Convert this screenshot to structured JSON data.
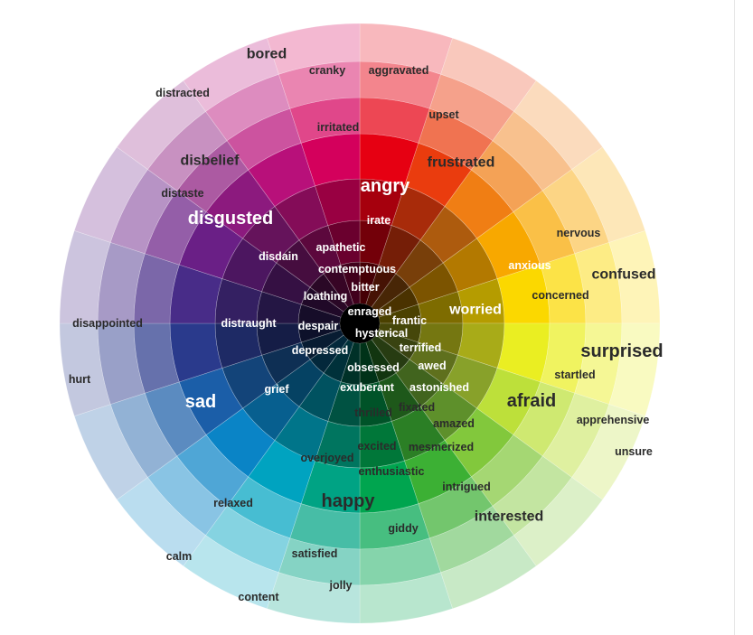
{
  "wheel": {
    "sector_colors": [
      {
        "name": "red",
        "color": "#e60012"
      },
      {
        "name": "red-orange",
        "color": "#ea3c0e"
      },
      {
        "name": "orange",
        "color": "#f07e14"
      },
      {
        "name": "orange-yellow",
        "color": "#f8a800"
      },
      {
        "name": "yellow",
        "color": "#fbd800"
      },
      {
        "name": "yellow-green",
        "color": "#eaee22"
      },
      {
        "name": "yellow-green-2",
        "color": "#bde03a"
      },
      {
        "name": "green-yellow",
        "color": "#82c83c"
      },
      {
        "name": "green",
        "color": "#3cb034"
      },
      {
        "name": "green-2",
        "color": "#00a54f"
      },
      {
        "name": "teal-green",
        "color": "#00a384"
      },
      {
        "name": "cyan",
        "color": "#00a3c0"
      },
      {
        "name": "blue-cyan",
        "color": "#0a84c6"
      },
      {
        "name": "blue",
        "color": "#1b5ea8"
      },
      {
        "name": "indigo",
        "color": "#2a3a8c"
      },
      {
        "name": "violet",
        "color": "#482c88"
      },
      {
        "name": "purple",
        "color": "#6a1f86"
      },
      {
        "name": "magenta-purple",
        "color": "#8c1a7e"
      },
      {
        "name": "magenta",
        "color": "#b8107a"
      },
      {
        "name": "crimson",
        "color": "#d4005c"
      }
    ],
    "center_color": "#000000"
  },
  "emotions": [
    {
      "text": "bored",
      "tone": "dark",
      "size": "md"
    },
    {
      "text": "cranky",
      "tone": "dark",
      "size": "sm"
    },
    {
      "text": "aggravated",
      "tone": "dark",
      "size": "sm"
    },
    {
      "text": "distracted",
      "tone": "dark",
      "size": "sm"
    },
    {
      "text": "upset",
      "tone": "dark",
      "size": "sm"
    },
    {
      "text": "irritated",
      "tone": "dark",
      "size": "sm"
    },
    {
      "text": "disbelief",
      "tone": "dark",
      "size": "md"
    },
    {
      "text": "frustrated",
      "tone": "dark",
      "size": "md"
    },
    {
      "text": "angry",
      "tone": "light",
      "size": "lg"
    },
    {
      "text": "distaste",
      "tone": "dark",
      "size": "sm"
    },
    {
      "text": "disgusted",
      "tone": "light",
      "size": "lg"
    },
    {
      "text": "irate",
      "tone": "light",
      "size": "sm"
    },
    {
      "text": "nervous",
      "tone": "dark",
      "size": "sm"
    },
    {
      "text": "apathetic",
      "tone": "light",
      "size": "sm"
    },
    {
      "text": "disdain",
      "tone": "light",
      "size": "sm"
    },
    {
      "text": "anxious",
      "tone": "light",
      "size": "sm"
    },
    {
      "text": "contemptuous",
      "tone": "light",
      "size": "sm"
    },
    {
      "text": "confused",
      "tone": "dark",
      "size": "md"
    },
    {
      "text": "bitter",
      "tone": "light",
      "size": "sm"
    },
    {
      "text": "loathing",
      "tone": "light",
      "size": "sm"
    },
    {
      "text": "concerned",
      "tone": "dark",
      "size": "sm"
    },
    {
      "text": "worried",
      "tone": "light",
      "size": "md"
    },
    {
      "text": "enraged",
      "tone": "light",
      "size": "sm"
    },
    {
      "text": "frantic",
      "tone": "light",
      "size": "sm"
    },
    {
      "text": "disappointed",
      "tone": "dark",
      "size": "sm"
    },
    {
      "text": "distraught",
      "tone": "light",
      "size": "sm"
    },
    {
      "text": "despair",
      "tone": "light",
      "size": "sm"
    },
    {
      "text": "hysterical",
      "tone": "light",
      "size": "sm"
    },
    {
      "text": "terrified",
      "tone": "light",
      "size": "sm"
    },
    {
      "text": "depressed",
      "tone": "light",
      "size": "sm"
    },
    {
      "text": "surprised",
      "tone": "dark",
      "size": "lg"
    },
    {
      "text": "obsessed",
      "tone": "light",
      "size": "sm"
    },
    {
      "text": "awed",
      "tone": "light",
      "size": "sm"
    },
    {
      "text": "startled",
      "tone": "dark",
      "size": "sm"
    },
    {
      "text": "hurt",
      "tone": "dark",
      "size": "sm"
    },
    {
      "text": "grief",
      "tone": "light",
      "size": "sm"
    },
    {
      "text": "exuberant",
      "tone": "light",
      "size": "sm"
    },
    {
      "text": "astonished",
      "tone": "light",
      "size": "sm"
    },
    {
      "text": "sad",
      "tone": "light",
      "size": "lg"
    },
    {
      "text": "afraid",
      "tone": "dark",
      "size": "lg"
    },
    {
      "text": "fixated",
      "tone": "dark",
      "size": "sm"
    },
    {
      "text": "thrilled",
      "tone": "dark",
      "size": "sm"
    },
    {
      "text": "apprehensive",
      "tone": "dark",
      "size": "sm"
    },
    {
      "text": "amazed",
      "tone": "dark",
      "size": "sm"
    },
    {
      "text": "excited",
      "tone": "dark",
      "size": "sm"
    },
    {
      "text": "mesmerized",
      "tone": "dark",
      "size": "sm"
    },
    {
      "text": "unsure",
      "tone": "dark",
      "size": "sm"
    },
    {
      "text": "overjoyed",
      "tone": "dark",
      "size": "sm"
    },
    {
      "text": "enthusiastic",
      "tone": "dark",
      "size": "sm"
    },
    {
      "text": "intrigued",
      "tone": "dark",
      "size": "sm"
    },
    {
      "text": "relaxed",
      "tone": "dark",
      "size": "sm"
    },
    {
      "text": "happy",
      "tone": "dark",
      "size": "lg"
    },
    {
      "text": "interested",
      "tone": "dark",
      "size": "md"
    },
    {
      "text": "giddy",
      "tone": "dark",
      "size": "sm"
    },
    {
      "text": "calm",
      "tone": "dark",
      "size": "sm"
    },
    {
      "text": "satisfied",
      "tone": "dark",
      "size": "sm"
    },
    {
      "text": "jolly",
      "tone": "dark",
      "size": "sm"
    },
    {
      "text": "content",
      "tone": "dark",
      "size": "sm"
    }
  ]
}
